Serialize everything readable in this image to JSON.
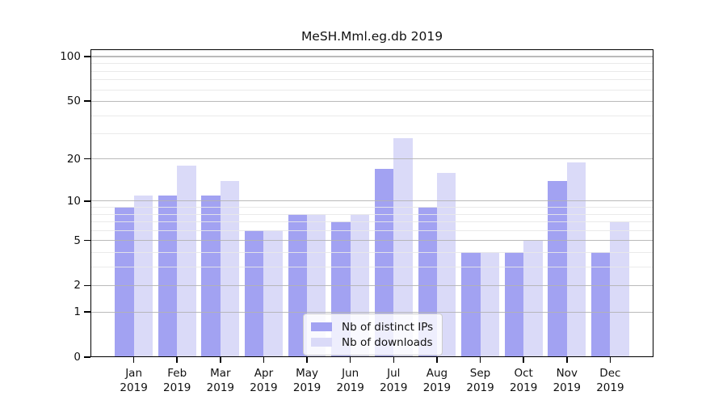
{
  "title": "MeSH.Mml.eg.db 2019",
  "colors": {
    "ips_bar": "#a2a2f2",
    "downloads_bar": "#dadaf8",
    "grid_major": "#b9b9b9",
    "grid_minor": "#ececec",
    "axis": "#000000"
  },
  "legend": {
    "items": [
      {
        "label": "Nb of distinct IPs",
        "series": "ips"
      },
      {
        "label": "Nb of downloads",
        "series": "downloads"
      }
    ]
  },
  "chart_data": {
    "type": "bar",
    "title": "MeSH.Mml.eg.db 2019",
    "categories": [
      "Jan 2019",
      "Feb 2019",
      "Mar 2019",
      "Apr 2019",
      "May 2019",
      "Jun 2019",
      "Jul 2019",
      "Aug 2019",
      "Sep 2019",
      "Oct 2019",
      "Nov 2019",
      "Dec 2019"
    ],
    "series": [
      {
        "name": "Nb of distinct IPs",
        "color": "#a2a2f2",
        "values": [
          9,
          11,
          11,
          6,
          8,
          7,
          17,
          9,
          4,
          4,
          14,
          4
        ]
      },
      {
        "name": "Nb of downloads",
        "color": "#dadaf8",
        "values": [
          11,
          18,
          14,
          6,
          8,
          8,
          28,
          16,
          4,
          5,
          19,
          7
        ]
      }
    ],
    "xlabel": "",
    "ylabel": "",
    "yscale": "log1p",
    "ylim": [
      0,
      112
    ],
    "y_ticks": [
      {
        "label": "0",
        "value": 0
      },
      {
        "label": "1",
        "value": 1
      },
      {
        "label": "2",
        "value": 2
      },
      {
        "label": "5",
        "value": 5
      },
      {
        "label": "10",
        "value": 10
      },
      {
        "label": "20",
        "value": 20
      },
      {
        "label": "50",
        "value": 50
      },
      {
        "label": "100",
        "value": 100
      }
    ],
    "y_minor_gridlines": [
      3,
      4,
      6,
      7,
      8,
      9,
      30,
      40,
      60,
      70,
      80,
      90
    ],
    "grid": true,
    "legend_position": "lower center-right inside plot"
  }
}
